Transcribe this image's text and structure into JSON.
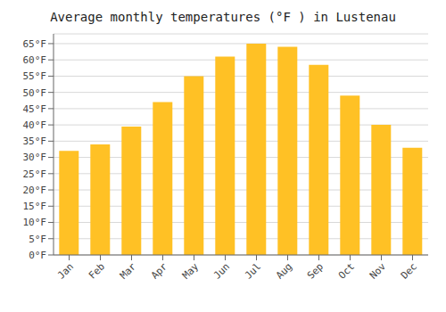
{
  "chart_data": {
    "type": "bar",
    "title": "Average monthly temperatures (°F ) in Lustenau",
    "categories": [
      "Jan",
      "Feb",
      "Mar",
      "Apr",
      "May",
      "Jun",
      "Jul",
      "Aug",
      "Sep",
      "Oct",
      "Nov",
      "Dec"
    ],
    "values": [
      32,
      34,
      39.5,
      47,
      55,
      61,
      65,
      64,
      58.5,
      49,
      40,
      33
    ],
    "color": "#FFC125",
    "ylim": [
      0,
      68
    ],
    "yticks": [
      {
        "value": 0,
        "label": "0°F"
      },
      {
        "value": 5,
        "label": "5°F"
      },
      {
        "value": 10,
        "label": "10°F"
      },
      {
        "value": 15,
        "label": "15°F"
      },
      {
        "value": 20,
        "label": "20°F"
      },
      {
        "value": 25,
        "label": "25°F"
      },
      {
        "value": 30,
        "label": "30°F"
      },
      {
        "value": 35,
        "label": "35°F"
      },
      {
        "value": 40,
        "label": "40°F"
      },
      {
        "value": 45,
        "label": "45°F"
      },
      {
        "value": 50,
        "label": "50°F"
      },
      {
        "value": 55,
        "label": "55°F"
      },
      {
        "value": 60,
        "label": "60°F"
      },
      {
        "value": 65,
        "label": "65°F"
      }
    ],
    "grid": true
  }
}
